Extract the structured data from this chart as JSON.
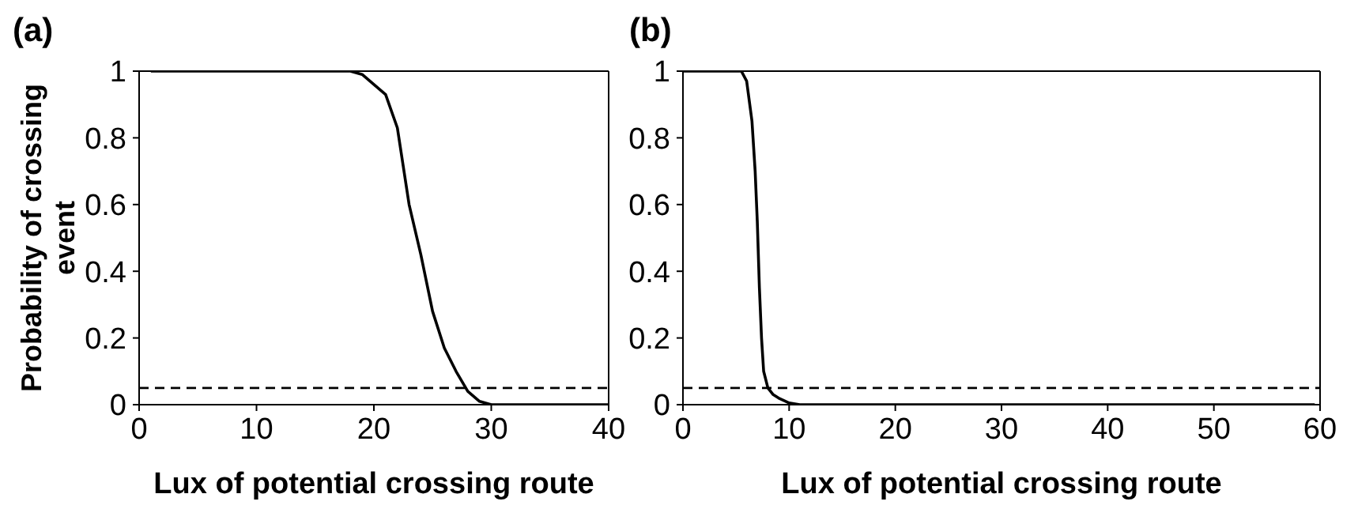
{
  "chart_data": [
    {
      "type": "line",
      "title": "(a)",
      "xlabel": "Lux of potential crossing route",
      "ylabel": "Probability of crossing event",
      "x": [
        1,
        5,
        10,
        15,
        18,
        19,
        20,
        21,
        22,
        23,
        24,
        25,
        26,
        27,
        28,
        29,
        30,
        31,
        35,
        40
      ],
      "series": [
        {
          "color": "#000000",
          "values": [
            1,
            1,
            1,
            1,
            1,
            0.99,
            0.96,
            0.93,
            0.83,
            0.6,
            0.45,
            0.28,
            0.17,
            0.1,
            0.04,
            0.01,
            0,
            0,
            0,
            0
          ]
        }
      ],
      "xlim": [
        0,
        40
      ],
      "xticks": [
        0,
        10,
        20,
        30,
        40
      ],
      "ylim": [
        0,
        1
      ],
      "yticks": [
        0,
        0.2,
        0.4,
        0.6,
        0.8,
        1
      ],
      "grid": false,
      "legend": false,
      "marker": "none",
      "line_style": "solid",
      "ref_lines": [
        {
          "axis": "y",
          "value": 0.05,
          "color": "#000000",
          "line_style": "dashed"
        }
      ]
    },
    {
      "type": "line",
      "title": "(b)",
      "xlabel": "Lux of potential crossing route",
      "x": [
        0,
        3,
        5.5,
        6,
        6.5,
        6.8,
        7,
        7.2,
        7.4,
        7.6,
        8,
        8.5,
        9,
        10,
        11,
        20,
        40,
        59.5
      ],
      "series": [
        {
          "color": "#000000",
          "values": [
            1,
            1,
            1,
            0.97,
            0.85,
            0.7,
            0.55,
            0.35,
            0.2,
            0.1,
            0.05,
            0.03,
            0.02,
            0.005,
            0,
            0,
            0,
            0
          ]
        }
      ],
      "xlim": [
        0,
        60
      ],
      "xticks": [
        0,
        10,
        20,
        30,
        40,
        50,
        60
      ],
      "ylim": [
        0,
        1
      ],
      "yticks": [
        0,
        0.2,
        0.4,
        0.6,
        0.8,
        1
      ],
      "grid": false,
      "legend": false,
      "marker": "none",
      "line_style": "solid",
      "ref_lines": [
        {
          "axis": "y",
          "value": 0.05,
          "color": "#000000",
          "line_style": "dashed"
        }
      ]
    }
  ]
}
